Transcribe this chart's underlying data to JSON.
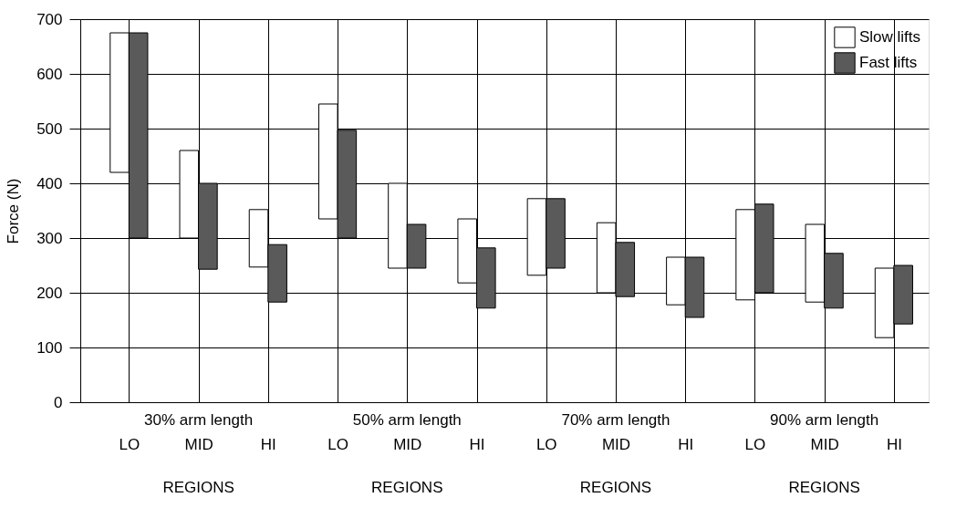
{
  "chart_data": {
    "type": "bar",
    "ylabel": "Force (N)",
    "categories": [
      "LO",
      "MID",
      "HI",
      "LO",
      "MID",
      "HI",
      "LO",
      "MID",
      "HI",
      "LO",
      "MID",
      "HI"
    ],
    "series": [
      {
        "name": "Slow lifts",
        "color": "#ffffff",
        "base": [
          420,
          300,
          247,
          335,
          245,
          218,
          232,
          200,
          178,
          187,
          183,
          118
        ],
        "values": [
          255,
          160,
          105,
          210,
          155,
          117,
          140,
          128,
          87,
          165,
          142,
          127
        ]
      },
      {
        "name": "Fast lifts",
        "color": "#5a5a5a",
        "base": [
          300,
          243,
          183,
          300,
          245,
          172,
          245,
          193,
          155,
          200,
          172,
          143
        ],
        "values": [
          375,
          157,
          105,
          197,
          80,
          110,
          127,
          99,
          110,
          162,
          100,
          107
        ]
      }
    ],
    "ylim": [
      0,
      700
    ],
    "yticks": [
      0,
      100,
      200,
      300,
      400,
      500,
      600,
      700
    ],
    "annotations": [
      "30% arm length",
      "50% arm length",
      "70% arm length",
      "90% arm length",
      "REGIONS",
      "REGIONS",
      "REGIONS",
      "REGIONS"
    ],
    "grid": true,
    "legend": "top right"
  }
}
